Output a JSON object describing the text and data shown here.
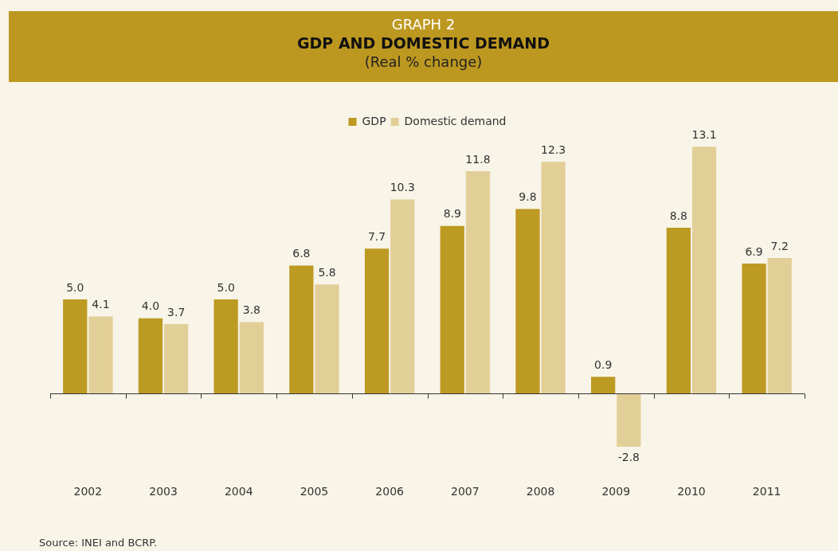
{
  "chart_data": {
    "type": "bar",
    "title": "GDP AND DOMESTIC DEMAND",
    "subtitle": "(Real % change)",
    "annotations": [
      "GRAPH 2",
      "Source: INEI and BCRP."
    ],
    "categories": [
      "2002",
      "2003",
      "2004",
      "2005",
      "2006",
      "2007",
      "2008",
      "2009",
      "2010",
      "2011"
    ],
    "series": [
      {
        "name": "GDP",
        "color": "#bd9a22",
        "values": [
          5.0,
          4.0,
          5.0,
          6.8,
          7.7,
          8.9,
          9.8,
          0.9,
          8.8,
          6.9
        ],
        "value_labels": [
          "5.0",
          "4.0",
          "5.0",
          "6.8",
          "7.7",
          "8.9",
          "9.8",
          "0.9",
          "8.8",
          "6.9"
        ]
      },
      {
        "name": "Domestic demand",
        "color": "#e2cf98",
        "values": [
          4.1,
          3.7,
          3.8,
          5.8,
          10.3,
          11.8,
          12.3,
          -2.8,
          13.1,
          7.2
        ],
        "value_labels": [
          "4.1",
          "3.7",
          "3.8",
          "5.8",
          "10.3",
          "11.8",
          "12.3",
          "-2.8",
          "13.1",
          "7.2"
        ]
      }
    ],
    "legend": "top",
    "grid": false
  }
}
